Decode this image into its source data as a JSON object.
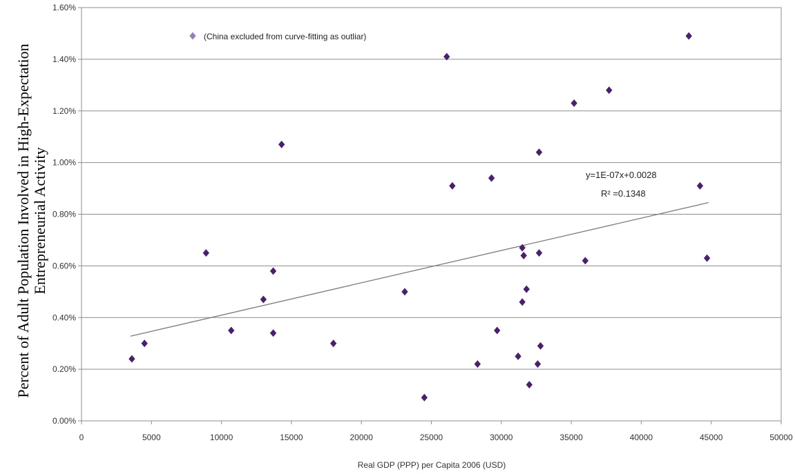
{
  "chart_data": {
    "type": "scatter",
    "xlabel": "Real GDP (PPP) per Capita 2006 (USD)",
    "ylabel_lines": [
      "Percent of Adult Population Involved in High-Expectation",
      "Entrepreneurial Activity"
    ],
    "xlim": [
      0,
      50000
    ],
    "ylim": [
      0,
      0.016
    ],
    "x_ticks": [
      "0",
      "5000",
      "10000",
      "15000",
      "20000",
      "25000",
      "30000",
      "35000",
      "40000",
      "45000",
      "50000"
    ],
    "y_ticks": [
      "0.00%",
      "0.20%",
      "0.40%",
      "0.60%",
      "0.80%",
      "1.00%",
      "1.20%",
      "1.40%",
      "1.60%"
    ],
    "grid": "horizontal",
    "legend_note": "(China excluded from curve-fitting as outliar)",
    "trendline": {
      "equation": "y=1E-07x+0.0028",
      "r_squared": "R² =0.1348",
      "x_range": [
        3500,
        44800
      ],
      "y_range": [
        0.00328,
        0.00845
      ]
    },
    "marker_color": "#4b1e6e",
    "legend_marker_color": "#9a7fc0",
    "points": [
      {
        "x": 3600,
        "y": 0.0024
      },
      {
        "x": 4500,
        "y": 0.003
      },
      {
        "x": 8900,
        "y": 0.0065
      },
      {
        "x": 10700,
        "y": 0.0035
      },
      {
        "x": 13000,
        "y": 0.0047
      },
      {
        "x": 13700,
        "y": 0.0058
      },
      {
        "x": 13700,
        "y": 0.0034
      },
      {
        "x": 14300,
        "y": 0.0107
      },
      {
        "x": 18000,
        "y": 0.003
      },
      {
        "x": 23100,
        "y": 0.005
      },
      {
        "x": 24500,
        "y": 0.0009
      },
      {
        "x": 26100,
        "y": 0.0141
      },
      {
        "x": 26500,
        "y": 0.0091
      },
      {
        "x": 28300,
        "y": 0.0022
      },
      {
        "x": 29300,
        "y": 0.0094
      },
      {
        "x": 29700,
        "y": 0.0035
      },
      {
        "x": 31200,
        "y": 0.0025
      },
      {
        "x": 31500,
        "y": 0.0067
      },
      {
        "x": 31600,
        "y": 0.0064
      },
      {
        "x": 31500,
        "y": 0.0046
      },
      {
        "x": 31800,
        "y": 0.0051
      },
      {
        "x": 32000,
        "y": 0.0014
      },
      {
        "x": 32600,
        "y": 0.0022
      },
      {
        "x": 32700,
        "y": 0.0065
      },
      {
        "x": 32700,
        "y": 0.0104
      },
      {
        "x": 32800,
        "y": 0.0029
      },
      {
        "x": 35200,
        "y": 0.0123
      },
      {
        "x": 36000,
        "y": 0.0062
      },
      {
        "x": 37700,
        "y": 0.0128
      },
      {
        "x": 43400,
        "y": 0.0149
      },
      {
        "x": 44200,
        "y": 0.0091
      },
      {
        "x": 44700,
        "y": 0.0063
      }
    ]
  }
}
